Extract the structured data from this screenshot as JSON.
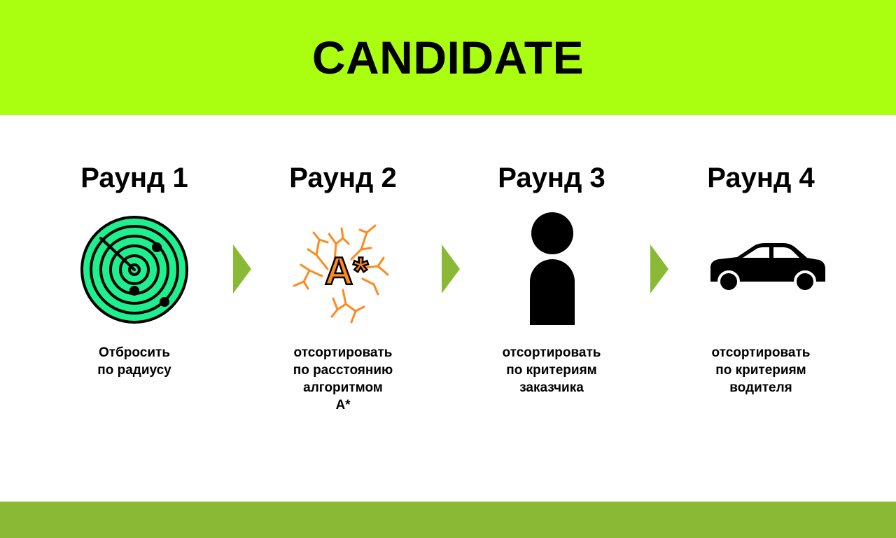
{
  "header": {
    "title": "CANDIDATE"
  },
  "colors": {
    "header_bg": "#aaff10",
    "footer_bg": "#8aba35",
    "arrow": "#8aba35",
    "radar": "#1ff08e",
    "astar": "#ff8a1e"
  },
  "rounds": [
    {
      "title": "Раунд 1",
      "icon": "radar-icon",
      "caption_lines": [
        "Отбросить",
        "по радиусу"
      ]
    },
    {
      "title": "Раунд 2",
      "icon": "a-star-graph-icon",
      "icon_text": "A*",
      "caption_lines": [
        "отсортировать",
        "по расстоянию",
        "алгоритмом",
        "A*"
      ]
    },
    {
      "title": "Раунд 3",
      "icon": "person-icon",
      "caption_lines": [
        "отсортировать",
        "по критериям",
        "заказчика"
      ]
    },
    {
      "title": "Раунд 4",
      "icon": "car-icon",
      "caption_lines": [
        "отсортировать",
        "по критериям",
        "водителя"
      ]
    }
  ],
  "arrows": [
    "chevron-right-icon",
    "chevron-right-icon",
    "chevron-right-icon"
  ]
}
